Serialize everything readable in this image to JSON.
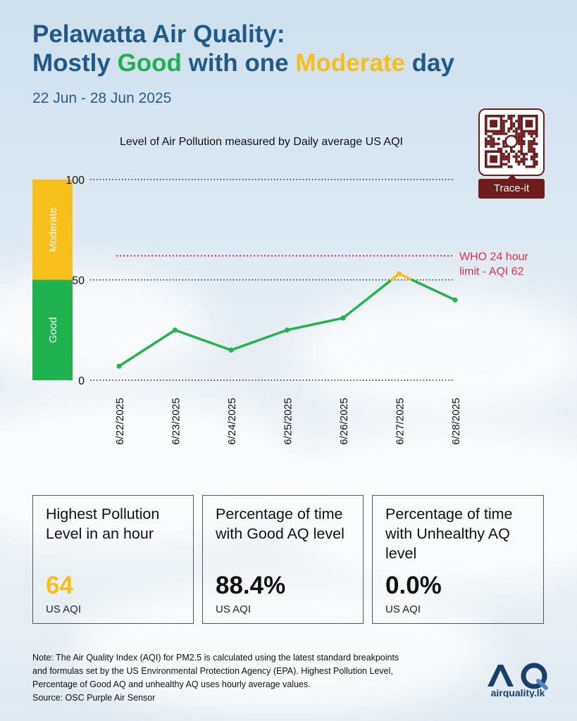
{
  "header": {
    "title_line1": "Pelawatta Air Quality:",
    "title_l2_part1": "Mostly ",
    "title_l2_good": "Good",
    "title_l2_part2": " with one ",
    "title_l2_moderate": "Moderate",
    "title_l2_part3": " day",
    "date_range": "22 Jun - 28 Jun 2025"
  },
  "colors": {
    "title_blue": "#1f5a88",
    "good_green": "#20b24f",
    "moderate_yellow": "#f6bf1a",
    "who_red": "#e0304a",
    "line_green": "#22b44b",
    "qr_maroon": "#6e1d1d",
    "logo_navy": "#19406a"
  },
  "qr": {
    "label": "Trace-it"
  },
  "chart_data": {
    "type": "line",
    "title": "Level of Air Pollution measured by Daily average US AQI",
    "xlabel": "",
    "ylabel": "",
    "x": [
      "6/22/2025",
      "6/23/2025",
      "6/24/2025",
      "6/25/2025",
      "6/26/2025",
      "6/27/2025",
      "6/28/2025"
    ],
    "series": [
      {
        "values": [
          7,
          25,
          15,
          25,
          31,
          53,
          40
        ]
      }
    ],
    "ylim": [
      0,
      100
    ],
    "yticks": [
      "0",
      "50",
      "100"
    ],
    "gridlines": "dotted",
    "bands": [
      {
        "label": "Good",
        "from": 0,
        "to": 50,
        "color": "#20b24f"
      },
      {
        "label": "Moderate",
        "from": 50,
        "to": 100,
        "color": "#f6bf1a"
      }
    ],
    "reference_line": {
      "value": 62,
      "label_line1": "WHO 24 hour",
      "label_line2": "limit - AQI 62",
      "color": "#e0304a"
    }
  },
  "stats": [
    {
      "title_lines": [
        "Highest Pollution",
        "Level in an hour"
      ],
      "value": "64",
      "unit": "US AQI",
      "value_color": "#f6bf1a"
    },
    {
      "title_lines": [
        "Percentage of time",
        "with Good AQ level"
      ],
      "value": "88.4%",
      "unit": "US AQI",
      "value_color": "#111111"
    },
    {
      "title_lines": [
        "Percentage of time",
        "with Unhealthy AQ",
        "level"
      ],
      "value": "0.0%",
      "unit": "US AQI",
      "value_color": "#111111"
    }
  ],
  "note": {
    "lines": [
      "Note: The Air Quality Index (AQI) for PM2.5 is calculated using the latest standard breakpoints",
      "and formulas set by the US Environmental Protection Agency (EPA). Highest Pollution Level,",
      "Percentage of Good AQ and unhealthy AQ uses hourly average values.",
      "Source: OSC Purple Air Sensor"
    ]
  },
  "logo": {
    "mark": "AQ",
    "text": "airquality.lk"
  }
}
